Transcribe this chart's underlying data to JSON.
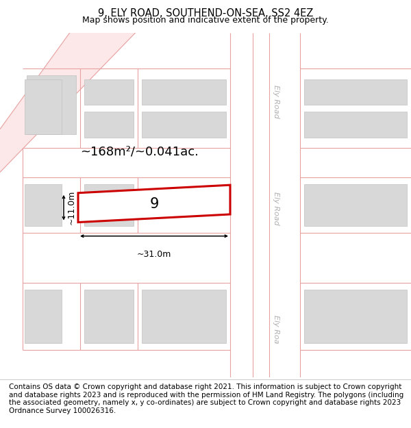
{
  "title": "9, ELY ROAD, SOUTHEND-ON-SEA, SS2 4EZ",
  "subtitle": "Map shows position and indicative extent of the property.",
  "title_fontsize": 10.5,
  "subtitle_fontsize": 9,
  "footer_text": "Contains OS data © Crown copyright and database right 2021. This information is subject to Crown copyright and database rights 2023 and is reproduced with the permission of HM Land Registry. The polygons (including the associated geometry, namely x, y co-ordinates) are subject to Crown copyright and database rights 2023 Ordnance Survey 100026316.",
  "footer_fontsize": 7.5,
  "area_label": "~168m²/~0.041ac.",
  "area_fontsize": 13,
  "plot_number": "9",
  "plot_number_fontsize": 15,
  "width_label": "~31.0m",
  "height_label": "~11.0m",
  "map_bg": "#f0f0f0",
  "road_fill": "#fce8e8",
  "road_line": "#e8a0a0",
  "building_fill": "#d8d8d8",
  "building_edge": "#c0c0c0",
  "road_label_color": "#b0b0b0",
  "red_color": "#cc0000"
}
